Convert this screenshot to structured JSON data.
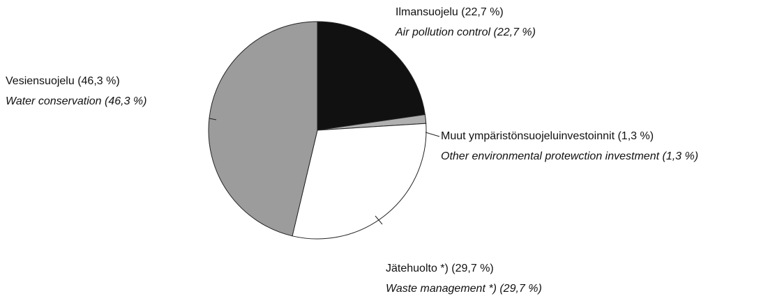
{
  "chart_data": {
    "type": "pie",
    "categories": [
      "Ilmansuojelu (22,7 %)",
      "Muut ympäristönsuojeluinvestoinnit (1,3 %)",
      "Jätehuolto *) (29,7 %)",
      "Vesiensuojelu (46,3 %)"
    ],
    "categories_en": [
      "Air pollution control (22,7 %)",
      "Other environmental protewction investment (1,3 %)",
      "Waste management *) (29,7 %)",
      "Water conservation (46,3 %)"
    ],
    "values": [
      22.7,
      1.3,
      29.7,
      46.3
    ],
    "colors": [
      "#111111",
      "#b0b0b0",
      "#ffffff",
      "#9c9c9c"
    ]
  }
}
